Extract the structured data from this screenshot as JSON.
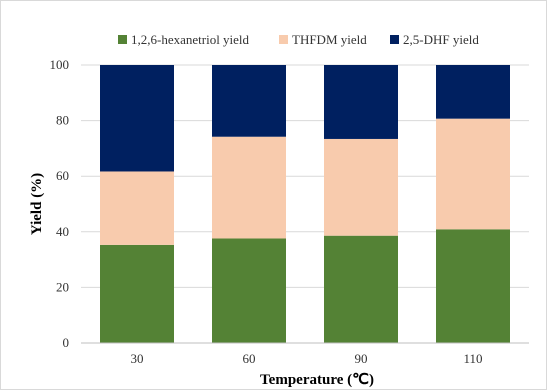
{
  "chart_data": {
    "type": "bar",
    "stacked": true,
    "categories": [
      "30",
      "60",
      "90",
      "110"
    ],
    "series": [
      {
        "name": "1,2,6-hexanetriol yield",
        "color": "#548235",
        "values": [
          35.3,
          37.6,
          38.6,
          40.9
        ]
      },
      {
        "name": "THFDM yield",
        "color": "#f8cbad",
        "values": [
          26.4,
          36.6,
          34.8,
          39.8
        ]
      },
      {
        "name": "2,5-DHF yield",
        "color": "#002060",
        "values": [
          38.3,
          25.8,
          26.6,
          19.3
        ]
      }
    ],
    "xlabel": "Temperature (℃)",
    "ylabel": "Yield (%)",
    "ylim": [
      0,
      100
    ],
    "yticks": [
      0,
      20,
      40,
      60,
      80,
      100
    ],
    "grid": true,
    "legend_position": "top"
  }
}
